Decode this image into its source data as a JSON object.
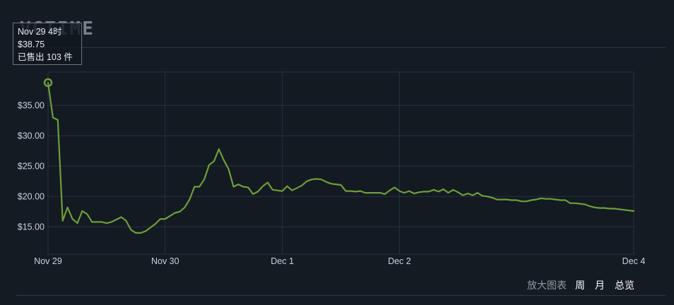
{
  "watermark": "VGTIME",
  "tooltip": {
    "date": "Nov 29 4时",
    "price": "$38.75",
    "sold": "已售出 103 件"
  },
  "controls": {
    "zoom_label": "放大图表",
    "week": "周",
    "month": "月",
    "overview": "总览"
  },
  "colors": {
    "line": "#6f9d3b",
    "grid": "#253240",
    "axis_text": "#c6d4df"
  },
  "chart_data": {
    "type": "line",
    "title": "",
    "xlabel": "",
    "ylabel": "",
    "x_ticks": [
      "Nov 29",
      "Nov 30",
      "Dec 1",
      "Dec 2",
      "Dec 4"
    ],
    "y_ticks": [
      "$15.00",
      "$20.00",
      "$25.00",
      "$30.00",
      "$35.00"
    ],
    "y_tick_values": [
      15,
      20,
      25,
      30,
      35
    ],
    "ylim": [
      10.5,
      40.5
    ],
    "xlim": [
      0,
      120
    ],
    "x_unit": "hours since Nov 29 00:00",
    "grid": true,
    "highlight_index": 0,
    "series": [
      {
        "values": [
          [
            0,
            38.75
          ],
          [
            1,
            33.0
          ],
          [
            2,
            32.6
          ],
          [
            3,
            16.0
          ],
          [
            4,
            18.2
          ],
          [
            5,
            16.3
          ],
          [
            6,
            15.6
          ],
          [
            7,
            17.6
          ],
          [
            8,
            17.1
          ],
          [
            9,
            15.8
          ],
          [
            10,
            15.8
          ],
          [
            11,
            15.8
          ],
          [
            12,
            15.6
          ],
          [
            13,
            15.8
          ],
          [
            14,
            16.2
          ],
          [
            15,
            16.6
          ],
          [
            16,
            16.0
          ],
          [
            17,
            14.5
          ],
          [
            18,
            14.0
          ],
          [
            19,
            14.0
          ],
          [
            20,
            14.3
          ],
          [
            21,
            14.9
          ],
          [
            22,
            15.5
          ],
          [
            23,
            16.3
          ],
          [
            24,
            16.3
          ],
          [
            25,
            16.8
          ],
          [
            26,
            17.3
          ],
          [
            27,
            17.5
          ],
          [
            28,
            18.2
          ],
          [
            29,
            19.5
          ],
          [
            30,
            21.6
          ],
          [
            31,
            21.6
          ],
          [
            32,
            22.8
          ],
          [
            33,
            25.2
          ],
          [
            34,
            25.8
          ],
          [
            35,
            27.8
          ],
          [
            36,
            26.0
          ],
          [
            37,
            24.5
          ],
          [
            38,
            21.6
          ],
          [
            39,
            22.0
          ],
          [
            40,
            21.6
          ],
          [
            41,
            21.5
          ],
          [
            42,
            20.4
          ],
          [
            43,
            20.8
          ],
          [
            44,
            21.7
          ],
          [
            45,
            22.3
          ],
          [
            46,
            21.1
          ],
          [
            47,
            21.0
          ],
          [
            48,
            20.9
          ],
          [
            49,
            21.7
          ],
          [
            50,
            21.0
          ],
          [
            51,
            21.4
          ],
          [
            52,
            21.8
          ],
          [
            53,
            22.5
          ],
          [
            54,
            22.8
          ],
          [
            55,
            22.9
          ],
          [
            56,
            22.8
          ],
          [
            57,
            22.4
          ],
          [
            58,
            22.1
          ],
          [
            59,
            22.0
          ],
          [
            60,
            21.9
          ],
          [
            61,
            20.9
          ],
          [
            62,
            20.9
          ],
          [
            63,
            20.8
          ],
          [
            64,
            20.9
          ],
          [
            65,
            20.6
          ],
          [
            66,
            20.6
          ],
          [
            67,
            20.6
          ],
          [
            68,
            20.6
          ],
          [
            69,
            20.4
          ],
          [
            70,
            21.0
          ],
          [
            71,
            21.5
          ],
          [
            72,
            20.9
          ],
          [
            73,
            20.6
          ],
          [
            74,
            20.9
          ],
          [
            75,
            20.5
          ],
          [
            76,
            20.7
          ],
          [
            77,
            20.8
          ],
          [
            78,
            20.8
          ],
          [
            79,
            21.1
          ],
          [
            80,
            20.8
          ],
          [
            81,
            21.2
          ],
          [
            82,
            20.6
          ],
          [
            83,
            21.1
          ],
          [
            84,
            20.7
          ],
          [
            85,
            20.2
          ],
          [
            86,
            20.5
          ],
          [
            87,
            20.2
          ],
          [
            88,
            20.6
          ],
          [
            89,
            20.1
          ],
          [
            90,
            20.0
          ],
          [
            91,
            19.8
          ],
          [
            92,
            19.5
          ],
          [
            93,
            19.5
          ],
          [
            94,
            19.5
          ],
          [
            95,
            19.4
          ],
          [
            96,
            19.4
          ],
          [
            97,
            19.2
          ],
          [
            98,
            19.2
          ],
          [
            99,
            19.4
          ],
          [
            100,
            19.5
          ],
          [
            101,
            19.7
          ],
          [
            102,
            19.6
          ],
          [
            103,
            19.6
          ],
          [
            104,
            19.5
          ],
          [
            105,
            19.4
          ],
          [
            106,
            19.4
          ],
          [
            107,
            18.9
          ],
          [
            108,
            18.9
          ],
          [
            109,
            18.8
          ],
          [
            110,
            18.7
          ],
          [
            111,
            18.4
          ],
          [
            112,
            18.2
          ],
          [
            113,
            18.1
          ],
          [
            114,
            18.1
          ],
          [
            115,
            18.0
          ],
          [
            116,
            18.0
          ],
          [
            117,
            17.9
          ],
          [
            118,
            17.8
          ],
          [
            119,
            17.7
          ],
          [
            120,
            17.6
          ]
        ]
      }
    ]
  }
}
